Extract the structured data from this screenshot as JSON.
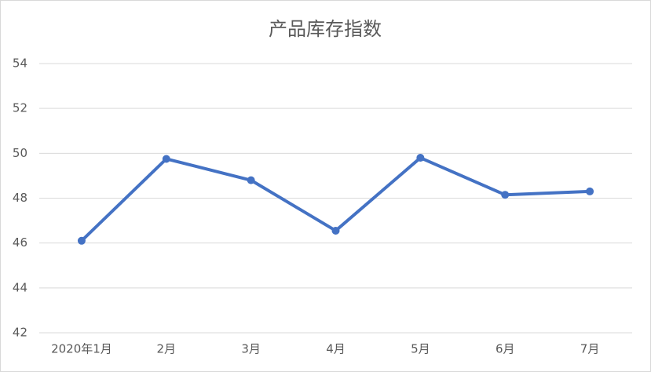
{
  "chart_data": {
    "type": "line",
    "title": "产品库存指数",
    "categories": [
      "2020年1月",
      "2月",
      "3月",
      "4月",
      "5月",
      "6月",
      "7月"
    ],
    "series": [
      {
        "name": "产品库存指数",
        "color": "#4472c4",
        "values": [
          46.1,
          49.75,
          48.8,
          46.55,
          49.8,
          48.15,
          48.3
        ]
      }
    ],
    "ylim": [
      42,
      54
    ],
    "yticks": [
      42,
      44,
      46,
      48,
      50,
      52,
      54
    ],
    "grid": true
  }
}
